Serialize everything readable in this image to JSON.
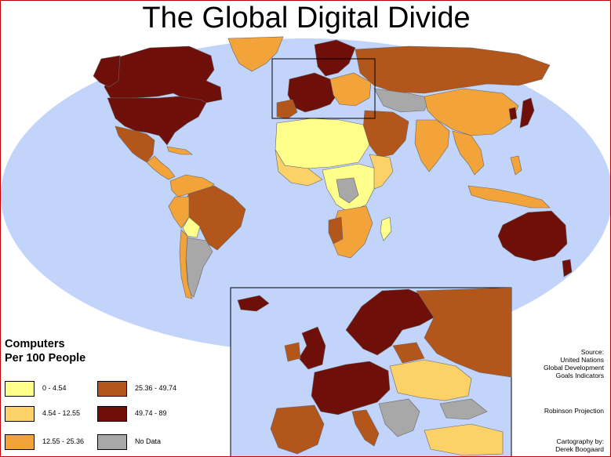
{
  "title": "The Global Digital Divide",
  "legend": {
    "title_line1": "Computers",
    "title_line2": "Per 100 People",
    "items": [
      {
        "label": "0 - 4.54",
        "color": "#ffff8c"
      },
      {
        "label": "4.54 - 12.55",
        "color": "#fcd168"
      },
      {
        "label": "12.55 - 25.36",
        "color": "#f2a33a"
      },
      {
        "label": "25.36 - 49.74",
        "color": "#b3561c"
      },
      {
        "label": "49.74 - 89",
        "color": "#6e0f0a"
      },
      {
        "label": "No Data",
        "color": "#a8a8a8"
      }
    ]
  },
  "credits": {
    "source_line1": "Source:",
    "source_line2": "United Nations",
    "source_line3": "Global Development",
    "source_line4": "Goals Indicators",
    "projection": "Robinson Projection",
    "cartography_line1": "Cartography by:",
    "cartography_line2": "Derek Boogaard"
  },
  "colors": {
    "ocean": "#c3d4fb",
    "border": "#666666"
  }
}
